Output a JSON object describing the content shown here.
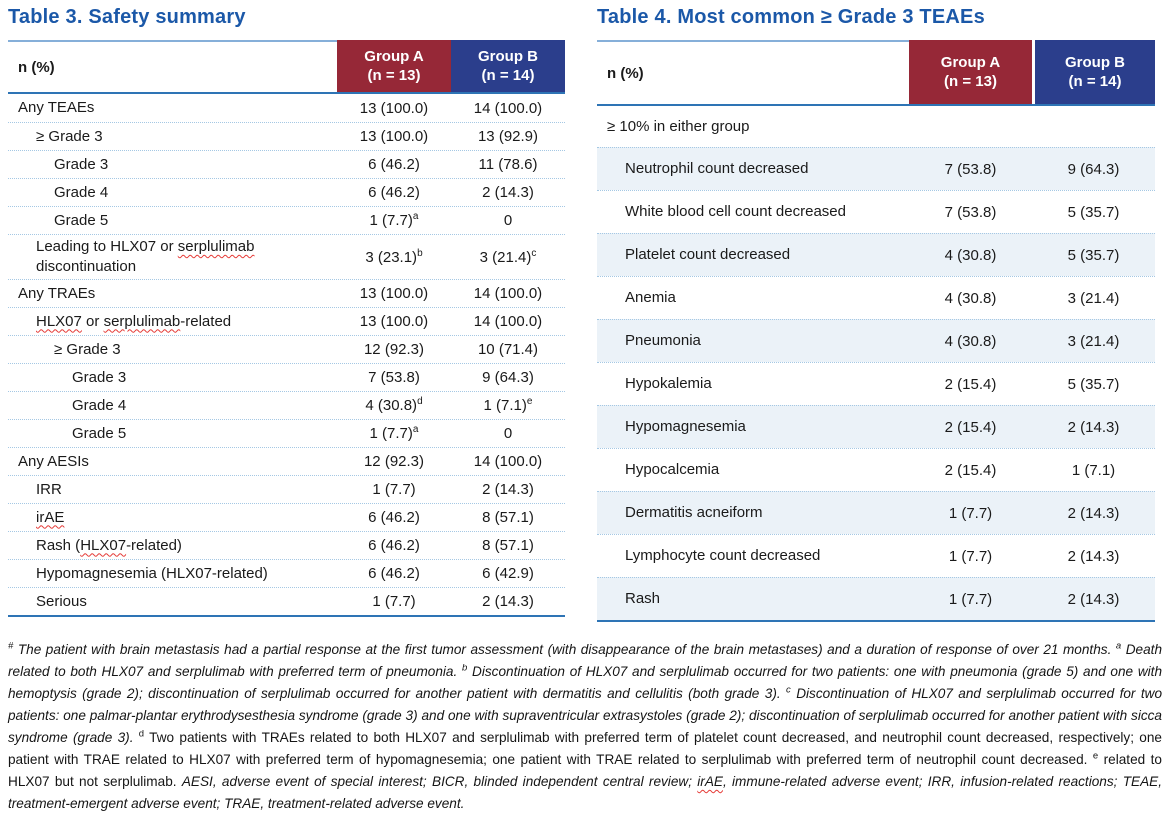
{
  "colors": {
    "title_blue": "#1B58A8",
    "group_a_maroon": "#962837",
    "group_b_navy": "#2B3E8C",
    "rule_blue": "#2E74B5",
    "band_light_blue": "#EBF2F8",
    "separator_dotted_blue": "#A5C8E4",
    "spellcheck_squiggle_red": "#E53935"
  },
  "table3": {
    "title": "Table 3. Safety summary",
    "col_header": "n (%)",
    "groups": [
      {
        "label": "Group A",
        "n": "(n = 13)"
      },
      {
        "label": "Group B",
        "n": "(n = 14)"
      }
    ],
    "rows": [
      {
        "label": "Any TEAEs",
        "indent": 0,
        "a": "13 (100.0)",
        "b": "14 (100.0)"
      },
      {
        "label": "≥ Grade 3",
        "indent": 1,
        "a": "13 (100.0)",
        "b": "13 (92.9)"
      },
      {
        "label": "Grade 3",
        "indent": 2,
        "a": "6 (46.2)",
        "b": "11 (78.6)"
      },
      {
        "label": "Grade 4",
        "indent": 2,
        "a": "6 (46.2)",
        "b": "2 (14.3)"
      },
      {
        "label": "Grade 5",
        "indent": 2,
        "a": "1 (7.7)^a",
        "b": "0"
      },
      {
        "label": "Leading to HLX07 or ~serplulimab~ discontinuation",
        "indent": 1,
        "a": "3 (23.1)^b",
        "b": "3 (21.4)^c"
      },
      {
        "label": "Any TRAEs",
        "indent": 0,
        "a": "13 (100.0)",
        "b": "14 (100.0)"
      },
      {
        "label": "~HLX07~ or ~serplulimab~-related",
        "indent": 1,
        "a": "13 (100.0)",
        "b": "14 (100.0)"
      },
      {
        "label": "≥ Grade 3",
        "indent": 2,
        "a": "12 (92.3)",
        "b": "10 (71.4)"
      },
      {
        "label": "Grade 3",
        "indent": 3,
        "a": "7 (53.8)",
        "b": "9 (64.3)"
      },
      {
        "label": "Grade 4",
        "indent": 3,
        "a": "4 (30.8)^d",
        "b": "1 (7.1)^e"
      },
      {
        "label": "Grade 5",
        "indent": 3,
        "a": "1 (7.7)^a",
        "b": "0"
      },
      {
        "label": "Any AESIs",
        "indent": 0,
        "a": "12 (92.3)",
        "b": "14 (100.0)"
      },
      {
        "label": "IRR",
        "indent": 1,
        "a": "1 (7.7)",
        "b": "2 (14.3)"
      },
      {
        "label": "~irAE~",
        "indent": 1,
        "a": "6 (46.2)",
        "b": "8 (57.1)"
      },
      {
        "label": "Rash (~HLX07~-related)",
        "indent": 1,
        "a": "6 (46.2)",
        "b": "8 (57.1)"
      },
      {
        "label": "Hypomagnesemia (HLX07-related)",
        "indent": 1,
        "a": "6 (46.2)",
        "b": "6 (42.9)"
      },
      {
        "label": "Serious",
        "indent": 1,
        "a": "1 (7.7)",
        "b": "2 (14.3)"
      }
    ]
  },
  "table4": {
    "title": "Table 4. Most common ≥ Grade 3 TEAEs",
    "col_header": "n (%)",
    "groups": [
      {
        "label": "Group A",
        "n": "(n = 13)"
      },
      {
        "label": "Group B",
        "n": "(n = 14)"
      }
    ],
    "section_label": "≥ 10% in either group",
    "rows": [
      {
        "label": "Neutrophil count decreased",
        "a": "7 (53.8)",
        "b": "9 (64.3)"
      },
      {
        "label": "White blood cell count decreased",
        "a": "7 (53.8)",
        "b": "5 (35.7)"
      },
      {
        "label": "Platelet count decreased",
        "a": "4 (30.8)",
        "b": "5 (35.7)"
      },
      {
        "label": "Anemia",
        "a": "4 (30.8)",
        "b": "3 (21.4)"
      },
      {
        "label": "Pneumonia",
        "a": "4 (30.8)",
        "b": "3 (21.4)"
      },
      {
        "label": "Hypokalemia",
        "a": "2 (15.4)",
        "b": "5 (35.7)"
      },
      {
        "label": "Hypomagnesemia",
        "a": "2 (15.4)",
        "b": "2 (14.3)"
      },
      {
        "label": "Hypocalcemia",
        "a": "2 (15.4)",
        "b": "1 (7.1)"
      },
      {
        "label": "Dermatitis acneiform",
        "a": "1 (7.7)",
        "b": "2 (14.3)"
      },
      {
        "label": "Lymphocyte count decreased",
        "a": "1 (7.7)",
        "b": "2 (14.3)"
      },
      {
        "label": "Rash",
        "a": "1 (7.7)",
        "b": "2 (14.3)"
      }
    ]
  },
  "footnote": {
    "segments": [
      {
        "sup": "#",
        "italic": true,
        "text": "The patient with brain metastasis had a partial response at the first tumor assessment (with disappearance of the brain metastases) and a duration of response of over 21 months."
      },
      {
        "sup": "a",
        "italic": true,
        "text": "Death related to both HLX07 and serplulimab with preferred term of pneumonia."
      },
      {
        "sup": "b",
        "italic": true,
        "text": "Discontinuation of HLX07 and serplulimab occurred for two patients: one with pneumonia (grade 5) and one with hemoptysis (grade 2); discontinuation of serplulimab occurred for another patient with dermatitis and cellulitis (both grade 3)."
      },
      {
        "sup": "c",
        "italic": true,
        "text": "Discontinuation of HLX07 and serplulimab occurred for two patients: one palmar-plantar erythrodysesthesia syndrome (grade 3) and one with supraventricular extrasystoles (grade 2); discontinuation of serplulimab occurred for another patient with sicca syndrome (grade 3)."
      },
      {
        "sup": "d",
        "italic": false,
        "text": "Two patients with TRAEs related to both HLX07 and serplulimab with preferred term of platelet count decreased, and neutrophil count decreased, respectively; one patient with TRAE related to HLX07 with preferred term of hypomagnesemia; one patient with TRAE related to serplulimab with preferred term of neutrophil count decreased."
      },
      {
        "sup": "e",
        "italic": false,
        "text": "related to HLX07 but not serplulimab."
      },
      {
        "sup": "",
        "italic": true,
        "text": "AESI, adverse event of special interest; BICR, blinded independent central review; ~irAE~, immune-related adverse event; IRR, infusion-related reactions; TEAE, treatment-emergent adverse event; TRAE, treatment-related adverse event."
      }
    ]
  }
}
